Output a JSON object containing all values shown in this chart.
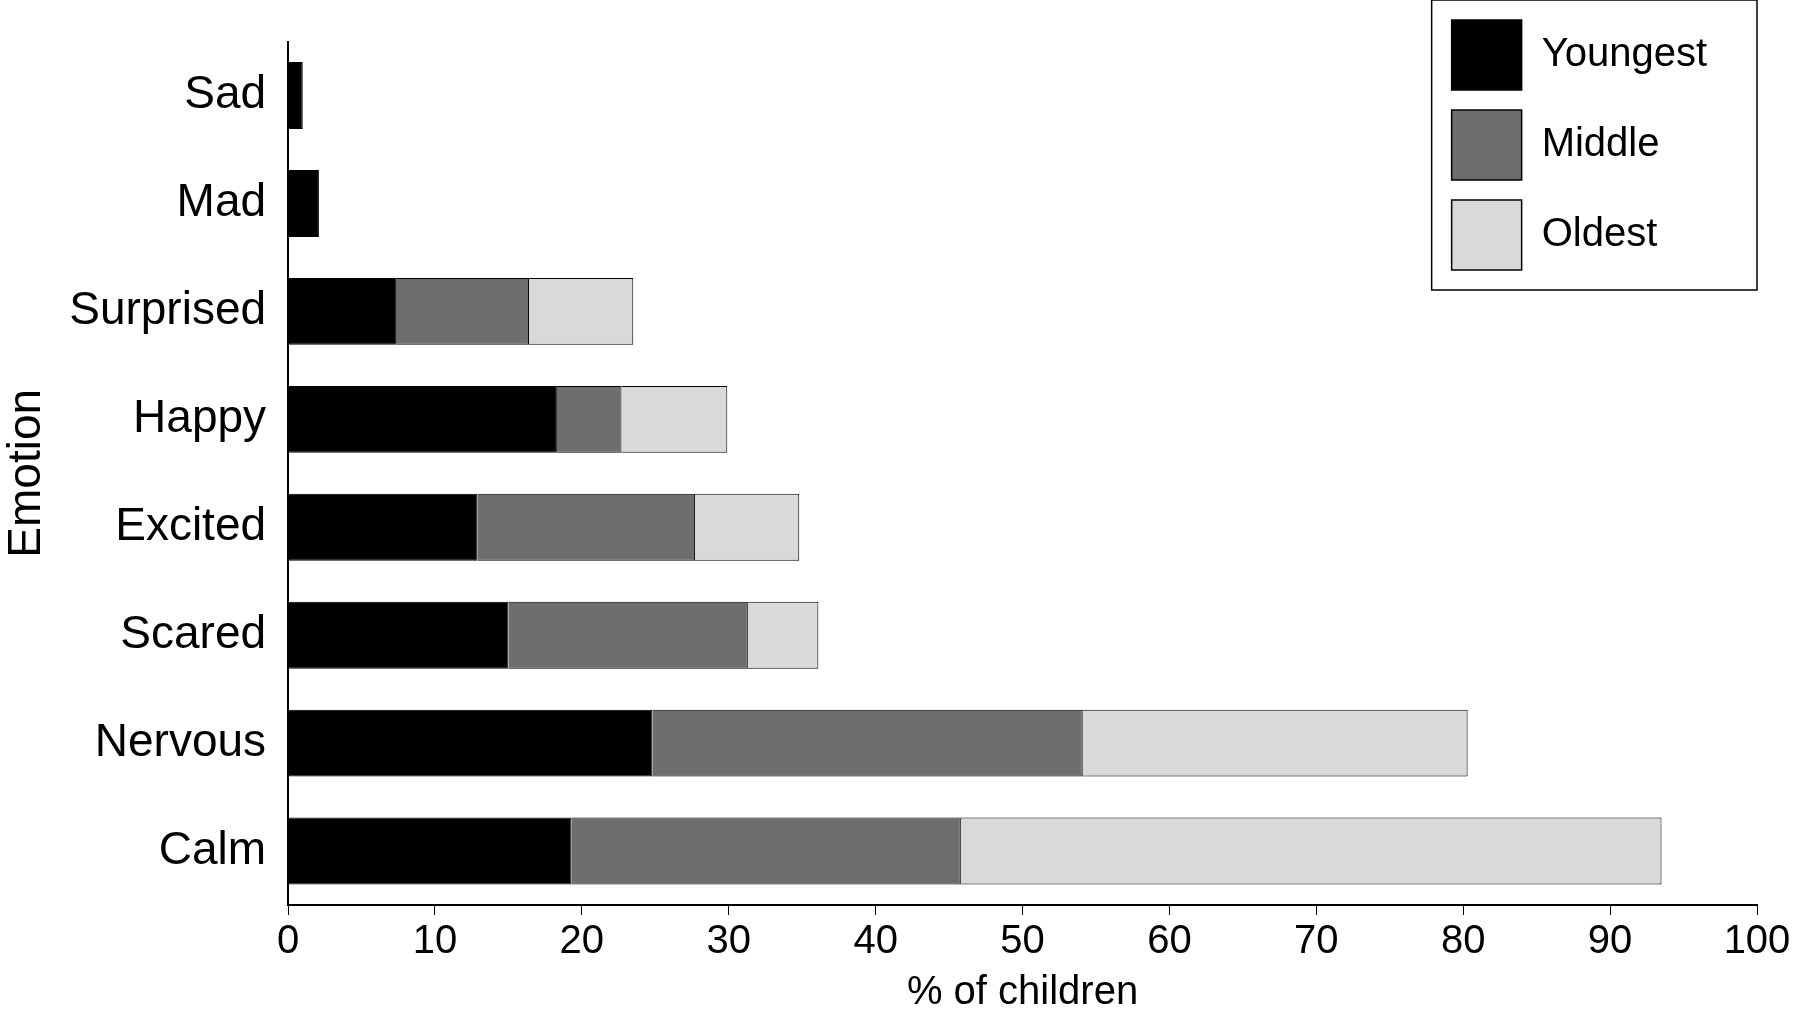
{
  "chart_data": {
    "type": "bar",
    "orientation": "horizontal",
    "stacked": true,
    "xlabel": "% of children",
    "ylabel": "Emotion",
    "categories": [
      "Sad",
      "Mad",
      "Surprised",
      "Happy",
      "Excited",
      "Scared",
      "Nervous",
      "Calm"
    ],
    "series": [
      {
        "name": "Youngest",
        "color": "#000000",
        "values": [
          1.0,
          2.1,
          7.4,
          18.3,
          12.9,
          15.0,
          24.8,
          19.3
        ]
      },
      {
        "name": "Middle",
        "color": "#6e6e6e",
        "values": [
          0,
          0,
          9.0,
          4.4,
          14.8,
          16.3,
          29.3,
          26.5
        ]
      },
      {
        "name": "Oldest",
        "color": "#d9d9d9",
        "values": [
          0,
          0,
          7.1,
          7.2,
          7.1,
          4.8,
          26.2,
          47.7
        ]
      }
    ],
    "xlim": [
      0,
      100
    ],
    "xticks": [
      0,
      10,
      20,
      30,
      40,
      50,
      60,
      70,
      80,
      90,
      100
    ],
    "grid": false,
    "legend": "top right"
  }
}
